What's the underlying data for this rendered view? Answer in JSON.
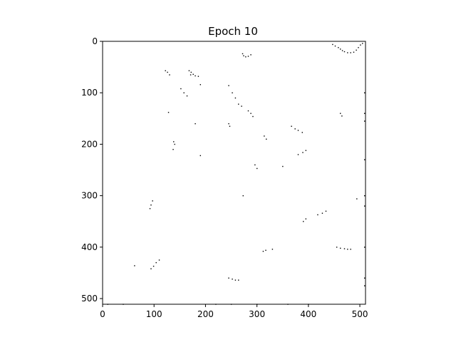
{
  "chart_data": {
    "type": "heatmap",
    "title": "Epoch 10",
    "xlabel": "",
    "ylabel": "",
    "xlim": [
      0,
      511
    ],
    "ylim": [
      511,
      0
    ],
    "y_inverted": true,
    "xticks": [
      0,
      100,
      200,
      300,
      400,
      500
    ],
    "yticks": [
      0,
      100,
      200,
      300,
      400,
      500
    ],
    "colormap": "binary",
    "background_color": "#ffffff",
    "pixel_color": "#000000",
    "points": [
      [
        447,
        6
      ],
      [
        452,
        9
      ],
      [
        458,
        12
      ],
      [
        462,
        15
      ],
      [
        466,
        18
      ],
      [
        470,
        20
      ],
      [
        476,
        22
      ],
      [
        482,
        22
      ],
      [
        488,
        21
      ],
      [
        493,
        17
      ],
      [
        497,
        12
      ],
      [
        501,
        7
      ],
      [
        505,
        4
      ],
      [
        272,
        24
      ],
      [
        274,
        28
      ],
      [
        278,
        30
      ],
      [
        283,
        29
      ],
      [
        288,
        26
      ],
      [
        122,
        57
      ],
      [
        126,
        60
      ],
      [
        130,
        65
      ],
      [
        168,
        57
      ],
      [
        172,
        60
      ],
      [
        176,
        64
      ],
      [
        180,
        67
      ],
      [
        186,
        68
      ],
      [
        171,
        65
      ],
      [
        190,
        84
      ],
      [
        152,
        92
      ],
      [
        158,
        100
      ],
      [
        164,
        106
      ],
      [
        245,
        86
      ],
      [
        252,
        100
      ],
      [
        258,
        110
      ],
      [
        264,
        122
      ],
      [
        270,
        126
      ],
      [
        283,
        135
      ],
      [
        288,
        140
      ],
      [
        292,
        146
      ],
      [
        128,
        138
      ],
      [
        180,
        160
      ],
      [
        245,
        160
      ],
      [
        247,
        165
      ],
      [
        462,
        140
      ],
      [
        465,
        145
      ],
      [
        367,
        165
      ],
      [
        374,
        170
      ],
      [
        380,
        173
      ],
      [
        388,
        177
      ],
      [
        314,
        184
      ],
      [
        318,
        190
      ],
      [
        138,
        195
      ],
      [
        140,
        200
      ],
      [
        137,
        210
      ],
      [
        395,
        212
      ],
      [
        389,
        216
      ],
      [
        380,
        220
      ],
      [
        190,
        222
      ],
      [
        350,
        243
      ],
      [
        296,
        240
      ],
      [
        300,
        247
      ],
      [
        273,
        300
      ],
      [
        494,
        306
      ],
      [
        97,
        310
      ],
      [
        94,
        318
      ],
      [
        92,
        325
      ],
      [
        434,
        330
      ],
      [
        427,
        334
      ],
      [
        418,
        337
      ],
      [
        395,
        345
      ],
      [
        390,
        350
      ],
      [
        455,
        400
      ],
      [
        462,
        402
      ],
      [
        470,
        403
      ],
      [
        476,
        404
      ],
      [
        482,
        404
      ],
      [
        330,
        404
      ],
      [
        317,
        406
      ],
      [
        312,
        408
      ],
      [
        110,
        425
      ],
      [
        104,
        430
      ],
      [
        99,
        437
      ],
      [
        94,
        442
      ],
      [
        62,
        436
      ],
      [
        245,
        460
      ],
      [
        252,
        462
      ],
      [
        258,
        464
      ],
      [
        264,
        464
      ],
      [
        10,
        511
      ],
      [
        40,
        511
      ],
      [
        220,
        511
      ],
      [
        250,
        511
      ],
      [
        300,
        511
      ],
      [
        360,
        511
      ],
      [
        400,
        511
      ],
      [
        509,
        100
      ],
      [
        509,
        140
      ],
      [
        509,
        155
      ],
      [
        509,
        230
      ],
      [
        509,
        300
      ],
      [
        509,
        320
      ],
      [
        509,
        400
      ],
      [
        509,
        460
      ],
      [
        509,
        475
      ]
    ]
  }
}
